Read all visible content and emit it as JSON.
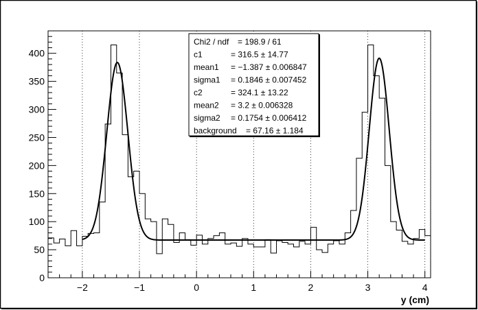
{
  "chart_data": {
    "type": "histogram_with_fit",
    "xlabel": "y (cm)",
    "ylabel": "",
    "title": "",
    "xlim": [
      -2.6,
      4.1
    ],
    "ylim": [
      0,
      440
    ],
    "x_ticks": [
      -2,
      -1,
      0,
      1,
      2,
      3,
      4
    ],
    "x_tick_labels": [
      "−2",
      "−1",
      "0",
      "1",
      "2",
      "3",
      "4"
    ],
    "y_ticks": [
      0,
      50,
      100,
      150,
      200,
      250,
      300,
      350,
      400
    ],
    "y_tick_labels": [
      "0",
      "50",
      "100",
      "150",
      "200",
      "250",
      "300",
      "350",
      "400"
    ],
    "grid": "vertical dotted",
    "histogram": {
      "bin_width": 0.1,
      "bin_low_edges": [
        -2.6,
        -2.5,
        -2.4,
        -2.3,
        -2.2,
        -2.1,
        -2.0,
        -1.9,
        -1.8,
        -1.7,
        -1.6,
        -1.5,
        -1.4,
        -1.3,
        -1.2,
        -1.1,
        -1.0,
        -0.9,
        -0.8,
        -0.7,
        -0.6,
        -0.5,
        -0.4,
        -0.3,
        -0.2,
        -0.1,
        0.0,
        0.1,
        0.2,
        0.3,
        0.4,
        0.5,
        0.6,
        0.7,
        0.8,
        0.9,
        1.0,
        1.1,
        1.2,
        1.3,
        1.4,
        1.5,
        1.6,
        1.7,
        1.8,
        1.9,
        2.0,
        2.1,
        2.2,
        2.3,
        2.4,
        2.5,
        2.6,
        2.7,
        2.8,
        2.9,
        3.0,
        3.1,
        3.2,
        3.3,
        3.4,
        3.5,
        3.6,
        3.7,
        3.8,
        3.9,
        4.0
      ],
      "counts": [
        71,
        62,
        69,
        57,
        84,
        57,
        74,
        79,
        80,
        135,
        274,
        415,
        365,
        255,
        180,
        190,
        150,
        105,
        100,
        43,
        105,
        95,
        63,
        80,
        68,
        58,
        76,
        60,
        70,
        75,
        80,
        60,
        62,
        56,
        70,
        60,
        55,
        55,
        68,
        44,
        66,
        63,
        60,
        55,
        65,
        60,
        90,
        50,
        45,
        60,
        66,
        60,
        80,
        120,
        213,
        295,
        415,
        360,
        320,
        200,
        100,
        85,
        65,
        60,
        70,
        86,
        75
      ]
    },
    "fit": {
      "model": "two gaussians + constant background",
      "c1": 316.5,
      "mean1": -1.387,
      "sigma1": 0.1846,
      "c2": 324.1,
      "mean2": 3.2,
      "sigma2": 0.1754,
      "background": 67.16,
      "x_range": [
        -2.0,
        4.0
      ]
    },
    "stats_box": {
      "rows": [
        {
          "label": "Chi2 / ndf",
          "value": "= 198.9 / 61"
        },
        {
          "label": "c1",
          "value": "= 316.5 ± 14.77"
        },
        {
          "label": "mean1",
          "value": "= −1.387 ± 0.006847"
        },
        {
          "label": "sigma1",
          "value": "= 0.1846 ± 0.007452"
        },
        {
          "label": "c2",
          "value": "= 324.1 ± 13.22"
        },
        {
          "label": "mean2",
          "value": "= 3.2 ± 0.006328"
        },
        {
          "label": "sigma2",
          "value": "= 0.1754 ± 0.006412"
        },
        {
          "label": "background",
          "value": "= 67.16 ± 1.184"
        }
      ]
    }
  }
}
